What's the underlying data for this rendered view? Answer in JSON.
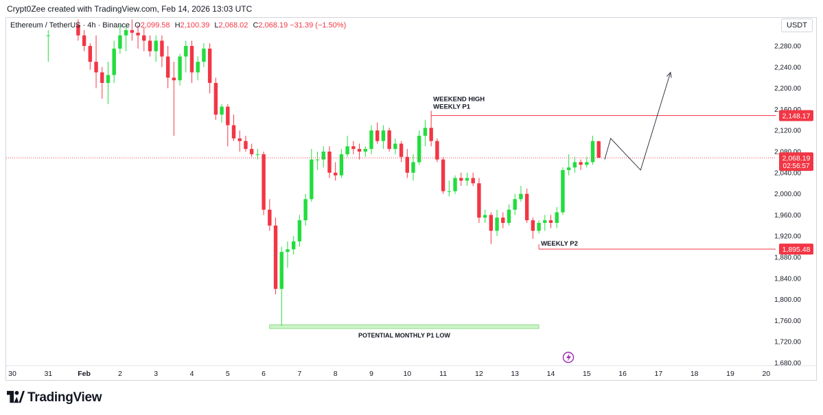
{
  "caption": "Crypt0Zee created with TradingView.com, Feb 14, 2026 13:03 UTC",
  "header": {
    "symbol": "Ethereum / TetherUS · 4h · Binance",
    "open_label": "O",
    "open_value": "2,099.58",
    "high_label": "H",
    "high_value": "2,100.39",
    "low_label": "L",
    "low_value": "2,068.02",
    "close_label": "C",
    "close_value": "2,068.19",
    "change": "−31.39 (−1.50%)",
    "currency_button": "USDT"
  },
  "brand": {
    "name": "TradingView"
  },
  "colors": {
    "up": "#22dd3d",
    "down": "#f23645",
    "level": "#f23645",
    "zone": "#ccf5c8",
    "zone_border": "#8fd98a"
  },
  "chart_data": {
    "type": "candlestick",
    "title": "",
    "xlabel": "",
    "ylabel": "",
    "interval": "4h",
    "ylim": [
      1660,
      2320
    ],
    "y_ticks": [
      "2,280.00",
      "2,240.00",
      "2,200.00",
      "2,160.00",
      "2,120.00",
      "2,080.00",
      "2,040.00",
      "2,000.00",
      "1,960.00",
      "1,920.00",
      "1,880.00",
      "1,840.00",
      "1,800.00",
      "1,760.00",
      "1,720.00",
      "1,680.00"
    ],
    "y_tick_values": [
      2280,
      2240,
      2200,
      2160,
      2120,
      2080,
      2040,
      2000,
      1960,
      1920,
      1880,
      1840,
      1800,
      1760,
      1720,
      1680
    ],
    "x_ticks": [
      "30",
      "31",
      "Feb",
      "2",
      "3",
      "4",
      "5",
      "6",
      "7",
      "8",
      "9",
      "10",
      "11",
      "12",
      "13",
      "14",
      "15",
      "16",
      "17",
      "18",
      "19",
      "20"
    ],
    "x_start": "2026-01-30",
    "candles": [
      [
        "2026-01-31 00:00",
        2300,
        2310,
        2250,
        2300
      ],
      [
        "2026-01-31 20:00",
        2320,
        2330,
        2290,
        2300
      ],
      [
        "2026-02-01 00:00",
        2300,
        2310,
        2270,
        2280
      ],
      [
        "2026-02-01 04:00",
        2280,
        2285,
        2235,
        2250
      ],
      [
        "2026-02-01 08:00",
        2250,
        2300,
        2200,
        2230
      ],
      [
        "2026-02-01 12:00",
        2230,
        2240,
        2180,
        2210
      ],
      [
        "2026-02-01 16:00",
        2210,
        2250,
        2170,
        2225
      ],
      [
        "2026-02-01 20:00",
        2225,
        2290,
        2210,
        2275
      ],
      [
        "2026-02-02 00:00",
        2275,
        2320,
        2265,
        2300
      ],
      [
        "2026-02-02 04:00",
        2300,
        2320,
        2270,
        2310
      ],
      [
        "2026-02-02 08:00",
        2310,
        2330,
        2290,
        2305
      ],
      [
        "2026-02-02 12:00",
        2305,
        2320,
        2275,
        2300
      ],
      [
        "2026-02-02 16:00",
        2300,
        2315,
        2270,
        2290
      ],
      [
        "2026-02-02 20:00",
        2290,
        2300,
        2260,
        2270
      ],
      [
        "2026-02-03 00:00",
        2270,
        2300,
        2250,
        2290
      ],
      [
        "2026-02-03 04:00",
        2290,
        2300,
        2240,
        2260
      ],
      [
        "2026-02-03 08:00",
        2260,
        2280,
        2200,
        2220
      ],
      [
        "2026-02-03 12:00",
        2220,
        2250,
        2110,
        2215
      ],
      [
        "2026-02-03 16:00",
        2215,
        2265,
        2205,
        2260
      ],
      [
        "2026-02-03 20:00",
        2260,
        2290,
        2230,
        2280
      ],
      [
        "2026-02-04 00:00",
        2280,
        2290,
        2210,
        2230
      ],
      [
        "2026-02-04 04:00",
        2230,
        2260,
        2215,
        2250
      ],
      [
        "2026-02-04 08:00",
        2250,
        2285,
        2240,
        2275
      ],
      [
        "2026-02-04 12:00",
        2275,
        2285,
        2190,
        2210
      ],
      [
        "2026-02-04 16:00",
        2210,
        2220,
        2140,
        2150
      ],
      [
        "2026-02-04 20:00",
        2150,
        2170,
        2135,
        2165
      ],
      [
        "2026-02-05 00:00",
        2165,
        2170,
        2090,
        2130
      ],
      [
        "2026-02-05 04:00",
        2130,
        2150,
        2100,
        2105
      ],
      [
        "2026-02-05 08:00",
        2105,
        2120,
        2080,
        2100
      ],
      [
        "2026-02-05 12:00",
        2100,
        2110,
        2080,
        2085
      ],
      [
        "2026-02-05 16:00",
        2085,
        2095,
        2070,
        2075
      ],
      [
        "2026-02-05 20:00",
        2075,
        2085,
        2065,
        2075
      ],
      [
        "2026-02-06 00:00",
        2075,
        2080,
        1960,
        1970
      ],
      [
        "2026-02-06 04:00",
        1970,
        1990,
        1930,
        1940
      ],
      [
        "2026-02-06 08:00",
        1940,
        1955,
        1810,
        1820
      ],
      [
        "2026-02-06 12:00",
        1820,
        1900,
        1750,
        1890
      ],
      [
        "2026-02-06 16:00",
        1890,
        1910,
        1860,
        1895
      ],
      [
        "2026-02-06 20:00",
        1895,
        1920,
        1885,
        1910
      ],
      [
        "2026-02-07 00:00",
        1910,
        1960,
        1900,
        1950
      ],
      [
        "2026-02-07 04:00",
        1950,
        2000,
        1940,
        1990
      ],
      [
        "2026-02-07 08:00",
        1990,
        2085,
        1985,
        2065
      ],
      [
        "2026-02-07 12:00",
        2065,
        2080,
        2045,
        2065
      ],
      [
        "2026-02-07 16:00",
        2065,
        2090,
        2050,
        2080
      ],
      [
        "2026-02-07 20:00",
        2080,
        2090,
        2030,
        2040
      ],
      [
        "2026-02-08 00:00",
        2040,
        2060,
        2025,
        2035
      ],
      [
        "2026-02-08 04:00",
        2035,
        2085,
        2030,
        2075
      ],
      [
        "2026-02-08 08:00",
        2075,
        2110,
        2070,
        2090
      ],
      [
        "2026-02-08 12:00",
        2090,
        2100,
        2075,
        2085
      ],
      [
        "2026-02-08 16:00",
        2085,
        2095,
        2065,
        2080
      ],
      [
        "2026-02-08 20:00",
        2080,
        2090,
        2070,
        2085
      ],
      [
        "2026-02-09 00:00",
        2085,
        2130,
        2075,
        2120
      ],
      [
        "2026-02-09 04:00",
        2120,
        2135,
        2095,
        2100
      ],
      [
        "2026-02-09 08:00",
        2100,
        2130,
        2085,
        2120
      ],
      [
        "2026-02-09 12:00",
        2120,
        2125,
        2080,
        2085
      ],
      [
        "2026-02-09 16:00",
        2085,
        2105,
        2075,
        2095
      ],
      [
        "2026-02-09 20:00",
        2095,
        2100,
        2060,
        2070
      ],
      [
        "2026-02-10 00:00",
        2070,
        2085,
        2030,
        2040
      ],
      [
        "2026-02-10 04:00",
        2040,
        2075,
        2025,
        2060
      ],
      [
        "2026-02-10 08:00",
        2060,
        2120,
        2055,
        2110
      ],
      [
        "2026-02-10 12:00",
        2110,
        2140,
        2090,
        2125
      ],
      [
        "2026-02-10 16:00",
        2125,
        2148,
        2090,
        2100
      ],
      [
        "2026-02-10 20:00",
        2100,
        2105,
        2060,
        2065
      ],
      [
        "2026-02-11 00:00",
        2065,
        2070,
        2000,
        2005
      ],
      [
        "2026-02-11 04:00",
        2005,
        2025,
        1995,
        2005
      ],
      [
        "2026-02-11 08:00",
        2005,
        2035,
        2000,
        2030
      ],
      [
        "2026-02-11 12:00",
        2030,
        2040,
        2015,
        2025
      ],
      [
        "2026-02-11 16:00",
        2025,
        2040,
        2015,
        2030
      ],
      [
        "2026-02-11 20:00",
        2030,
        2040,
        2015,
        2020
      ],
      [
        "2026-02-12 00:00",
        2020,
        2030,
        1945,
        1955
      ],
      [
        "2026-02-12 04:00",
        1955,
        1970,
        1945,
        1960
      ],
      [
        "2026-02-12 08:00",
        1960,
        1965,
        1905,
        1930
      ],
      [
        "2026-02-12 12:00",
        1930,
        1970,
        1920,
        1955
      ],
      [
        "2026-02-12 16:00",
        1955,
        1965,
        1935,
        1945
      ],
      [
        "2026-02-12 20:00",
        1945,
        1980,
        1940,
        1970
      ],
      [
        "2026-02-13 00:00",
        1970,
        2000,
        1960,
        1990
      ],
      [
        "2026-02-13 04:00",
        1990,
        2015,
        1985,
        2000
      ],
      [
        "2026-02-13 08:00",
        2000,
        2010,
        1945,
        1950
      ],
      [
        "2026-02-13 12:00",
        1950,
        1955,
        1915,
        1930
      ],
      [
        "2026-02-13 16:00",
        1930,
        1950,
        1925,
        1945
      ],
      [
        "2026-02-13 20:00",
        1945,
        1960,
        1930,
        1950
      ],
      [
        "2026-02-14 00:00",
        1950,
        1960,
        1935,
        1945
      ],
      [
        "2026-02-14 04:00",
        1945,
        1975,
        1935,
        1965
      ],
      [
        "2026-02-14 08:00",
        1965,
        2050,
        1960,
        2045
      ],
      [
        "2026-02-14 12:00",
        2045,
        2075,
        2035,
        2050
      ],
      [
        "2026-02-14 16:00",
        2050,
        2070,
        2040,
        2060
      ],
      [
        "2026-02-14 20:00",
        2060,
        2065,
        2045,
        2055
      ],
      [
        "2026-02-15 00:00",
        2055,
        2070,
        2050,
        2060
      ],
      [
        "2026-02-15 04:00",
        2060,
        2110,
        2055,
        2100
      ],
      [
        "2026-02-15 08:00",
        2099.58,
        2100.39,
        2068.02,
        2068.19
      ]
    ],
    "levels": [
      {
        "label": "2,148.17",
        "value": 2148.17,
        "from": "2026-02-10 16:00",
        "annotation": [
          "WEEKEND HIGH",
          "WEEKLY P1"
        ]
      },
      {
        "label": "1,895.48",
        "value": 1895.48,
        "from": "2026-02-13 16:00",
        "annotation": [
          "WEEKLY P2"
        ]
      }
    ],
    "current_price": {
      "label": "2,068.19",
      "value": 2068.19,
      "countdown": "02:56:57"
    },
    "zone": {
      "label": "POTENTIAL MONTHLY P1 LOW",
      "y_from": 1745,
      "y_to": 1752,
      "from": "2026-02-06 04:00",
      "to": "2026-02-13 16:00"
    },
    "projection": [
      [
        "2026-02-15 12:00",
        2065
      ],
      [
        "2026-02-15 16:00",
        2105
      ],
      [
        "2026-02-16 12:00",
        2045
      ],
      [
        "2026-02-17 08:00",
        2230
      ]
    ]
  }
}
